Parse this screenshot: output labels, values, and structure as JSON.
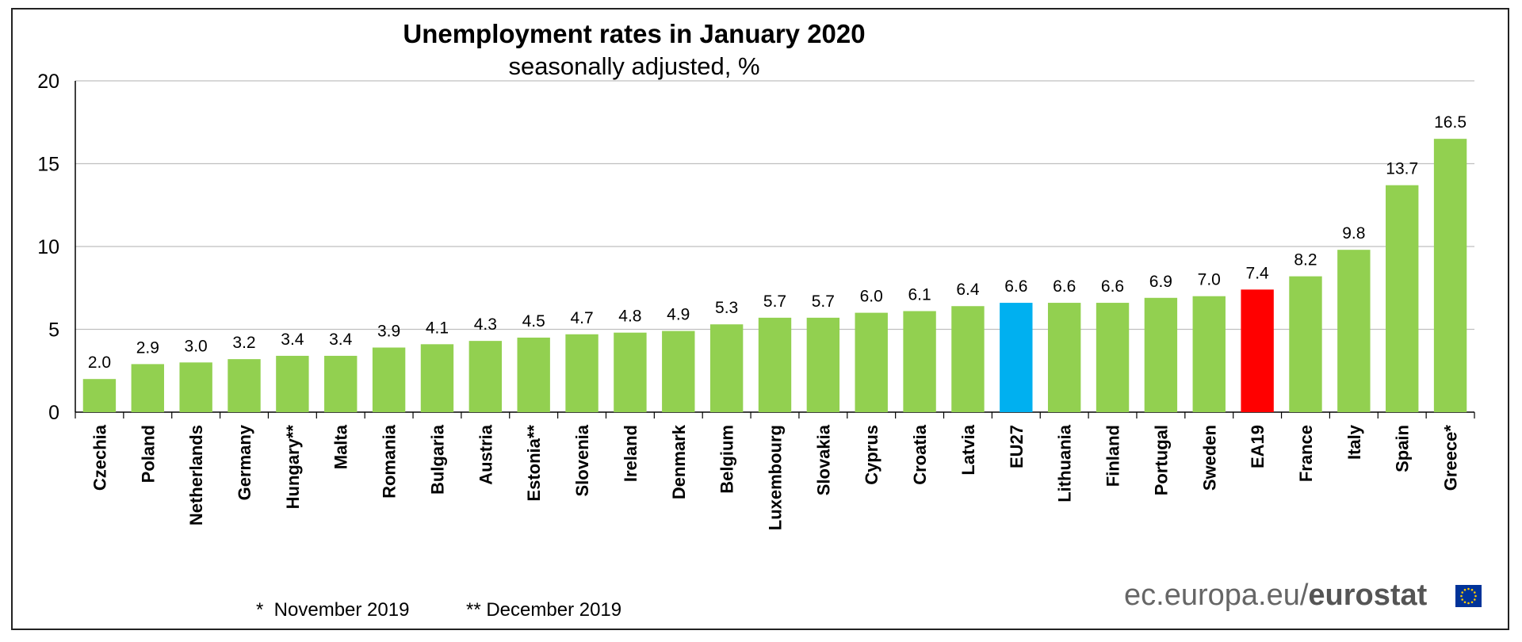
{
  "chart_data": {
    "type": "bar",
    "title": "Unemployment rates in January 2020",
    "subtitle": "seasonally adjusted, %",
    "ylim": [
      0,
      20
    ],
    "yticks": [
      0,
      5,
      10,
      15,
      20
    ],
    "grid": true,
    "categories": [
      "Czechia",
      "Poland",
      "Netherlands",
      "Germany",
      "Hungary**",
      "Malta",
      "Romania",
      "Bulgaria",
      "Austria",
      "Estonia**",
      "Slovenia",
      "Ireland",
      "Denmark",
      "Belgium",
      "Luxembourg",
      "Slovakia",
      "Cyprus",
      "Croatia",
      "Latvia",
      "EU27",
      "Lithuania",
      "Finland",
      "Portugal",
      "Sweden",
      "EA19",
      "France",
      "Italy",
      "Spain",
      "Greece*"
    ],
    "values": [
      2.0,
      2.9,
      3.0,
      3.2,
      3.4,
      3.4,
      3.9,
      4.1,
      4.3,
      4.5,
      4.7,
      4.8,
      4.9,
      5.3,
      5.7,
      5.7,
      6.0,
      6.1,
      6.4,
      6.6,
      6.6,
      6.6,
      6.9,
      7.0,
      7.4,
      8.2,
      9.8,
      13.7,
      16.5
    ],
    "value_labels": [
      "2.0",
      "2.9",
      "3.0",
      "3.2",
      "3.4",
      "3.4",
      "3.9",
      "4.1",
      "4.3",
      "4.5",
      "4.7",
      "4.8",
      "4.9",
      "5.3",
      "5.7",
      "5.7",
      "6.0",
      "6.1",
      "6.4",
      "6.6",
      "6.6",
      "6.6",
      "6.9",
      "7.0",
      "7.4",
      "8.2",
      "9.8",
      "13.7",
      "16.5"
    ],
    "colors": {
      "default": "#92d050",
      "EU27": "#00b0f0",
      "EA19": "#ff0000",
      "grid": "#bfbfbf"
    }
  },
  "footnotes": {
    "note1": "*  November 2019",
    "note2": "** December 2019"
  },
  "source": {
    "plain": "ec.europa.eu/",
    "bold": "eurostat"
  }
}
